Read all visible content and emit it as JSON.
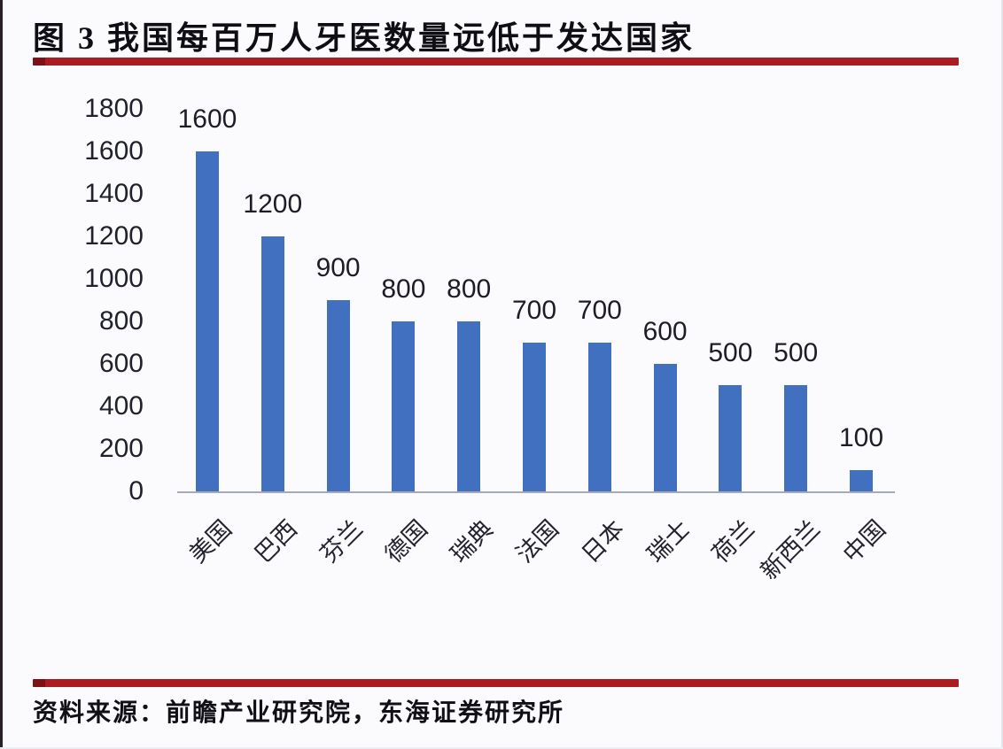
{
  "header": {
    "title": "图 3  我国每百万人牙医数量远低于发达国家"
  },
  "footer": {
    "source": "资料来源：前瞻产业研究院，东海证券研究所"
  },
  "colors": {
    "bar": "#4170c1",
    "rule": "#ab1b20",
    "rule_cap": "#7e1115",
    "axis_line": "#a4aab6",
    "tick_text": "#21212e",
    "background": "#fbfbfd"
  },
  "chart_data": {
    "type": "bar",
    "title": "图 3  我国每百万人牙医数量远低于发达国家",
    "categories": [
      "美国",
      "巴西",
      "芬兰",
      "德国",
      "瑞典",
      "法国",
      "日本",
      "瑞士",
      "荷兰",
      "新西兰",
      "中国"
    ],
    "values": [
      1600,
      1200,
      900,
      800,
      800,
      700,
      700,
      600,
      500,
      500,
      100
    ],
    "xlabel": "",
    "ylabel": "",
    "ylim": [
      0,
      1800
    ],
    "yticks": [
      0,
      200,
      400,
      600,
      800,
      1000,
      1200,
      1400,
      1600,
      1800
    ],
    "grid": false,
    "legend": "none",
    "data_labels": true,
    "source": "资料来源：前瞻产业研究院，东海证券研究所"
  }
}
